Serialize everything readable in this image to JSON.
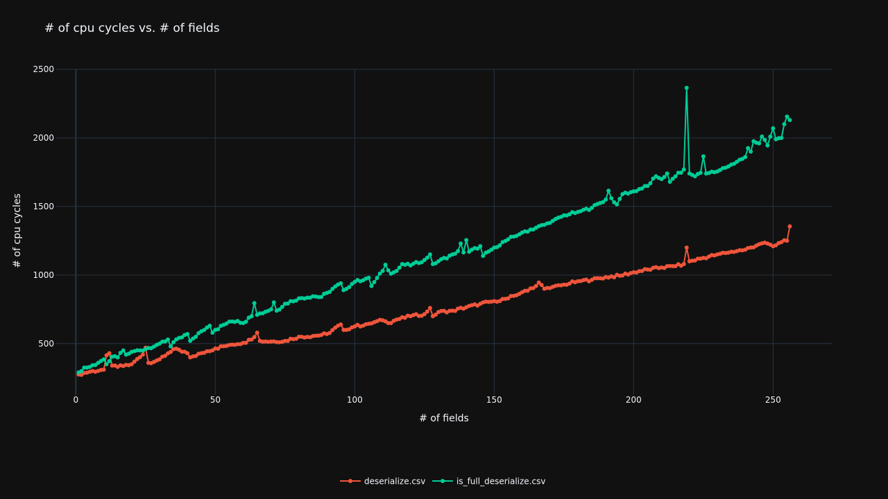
{
  "chart_data": {
    "type": "line",
    "title": "# of cpu cycles vs. # of fields",
    "xlabel": "# of fields",
    "ylabel": "# of cpu cycles",
    "xlim": [
      -7.3,
      271.3
    ],
    "ylim": [
      125,
      2500
    ],
    "xticks": [
      0,
      50,
      100,
      150,
      200,
      250
    ],
    "yticks": [
      500,
      1000,
      1500,
      2000,
      2500
    ],
    "grid": true,
    "legend_position": "bottom-center",
    "colors": {
      "background": "#111111",
      "grid": "#283442",
      "text": "#f2f5fa",
      "deserialize": "#EF553B",
      "is_full_deserialize": "#00CC96"
    },
    "series": [
      {
        "name": "deserialize.csv",
        "color": "#EF553B",
        "anchors": [
          [
            1,
            275
          ],
          [
            5,
            295
          ],
          [
            10,
            310
          ],
          [
            11,
            415
          ],
          [
            12,
            430
          ],
          [
            13,
            340
          ],
          [
            15,
            330
          ],
          [
            20,
            350
          ],
          [
            24,
            420
          ],
          [
            25,
            470
          ],
          [
            26,
            360
          ],
          [
            30,
            385
          ],
          [
            35,
            460
          ],
          [
            40,
            430
          ],
          [
            41,
            400
          ],
          [
            45,
            430
          ],
          [
            50,
            465
          ],
          [
            55,
            490
          ],
          [
            60,
            505
          ],
          [
            63,
            530
          ],
          [
            65,
            580
          ],
          [
            66,
            520
          ],
          [
            70,
            515
          ],
          [
            75,
            520
          ],
          [
            80,
            550
          ],
          [
            85,
            555
          ],
          [
            90,
            570
          ],
          [
            95,
            640
          ],
          [
            96,
            600
          ],
          [
            100,
            625
          ],
          [
            105,
            645
          ],
          [
            110,
            670
          ],
          [
            112,
            650
          ],
          [
            115,
            675
          ],
          [
            120,
            700
          ],
          [
            125,
            715
          ],
          [
            127,
            760
          ],
          [
            128,
            700
          ],
          [
            130,
            730
          ],
          [
            135,
            740
          ],
          [
            140,
            765
          ],
          [
            145,
            790
          ],
          [
            150,
            810
          ],
          [
            155,
            830
          ],
          [
            160,
            875
          ],
          [
            165,
            920
          ],
          [
            166,
            945
          ],
          [
            168,
            900
          ],
          [
            170,
            905
          ],
          [
            175,
            930
          ],
          [
            180,
            955
          ],
          [
            185,
            965
          ],
          [
            190,
            985
          ],
          [
            195,
            995
          ],
          [
            200,
            1020
          ],
          [
            205,
            1040
          ],
          [
            210,
            1055
          ],
          [
            215,
            1065
          ],
          [
            218,
            1080
          ],
          [
            219,
            1200
          ],
          [
            220,
            1100
          ],
          [
            225,
            1125
          ],
          [
            230,
            1150
          ],
          [
            235,
            1170
          ],
          [
            240,
            1185
          ],
          [
            245,
            1225
          ],
          [
            248,
            1230
          ],
          [
            250,
            1210
          ],
          [
            253,
            1240
          ],
          [
            255,
            1250
          ],
          [
            256,
            1355
          ]
        ]
      },
      {
        "name": "is_full_deserialize.csv",
        "color": "#00CC96",
        "anchors": [
          [
            1,
            290
          ],
          [
            3,
            325
          ],
          [
            5,
            330
          ],
          [
            8,
            360
          ],
          [
            10,
            385
          ],
          [
            11,
            350
          ],
          [
            13,
            405
          ],
          [
            15,
            400
          ],
          [
            17,
            450
          ],
          [
            18,
            420
          ],
          [
            20,
            440
          ],
          [
            25,
            460
          ],
          [
            30,
            500
          ],
          [
            33,
            530
          ],
          [
            34,
            480
          ],
          [
            35,
            510
          ],
          [
            40,
            570
          ],
          [
            41,
            520
          ],
          [
            45,
            590
          ],
          [
            48,
            630
          ],
          [
            49,
            580
          ],
          [
            50,
            600
          ],
          [
            55,
            660
          ],
          [
            58,
            665
          ],
          [
            60,
            650
          ],
          [
            63,
            700
          ],
          [
            64,
            795
          ],
          [
            65,
            710
          ],
          [
            70,
            750
          ],
          [
            71,
            800
          ],
          [
            72,
            740
          ],
          [
            75,
            790
          ],
          [
            80,
            830
          ],
          [
            85,
            845
          ],
          [
            88,
            840
          ],
          [
            90,
            870
          ],
          [
            95,
            940
          ],
          [
            96,
            890
          ],
          [
            100,
            950
          ],
          [
            105,
            980
          ],
          [
            106,
            920
          ],
          [
            110,
            1030
          ],
          [
            111,
            1075
          ],
          [
            113,
            1010
          ],
          [
            115,
            1030
          ],
          [
            117,
            1080
          ],
          [
            120,
            1070
          ],
          [
            125,
            1110
          ],
          [
            127,
            1150
          ],
          [
            128,
            1080
          ],
          [
            130,
            1100
          ],
          [
            135,
            1150
          ],
          [
            137,
            1175
          ],
          [
            138,
            1230
          ],
          [
            139,
            1165
          ],
          [
            140,
            1255
          ],
          [
            141,
            1170
          ],
          [
            145,
            1210
          ],
          [
            146,
            1140
          ],
          [
            150,
            1200
          ],
          [
            155,
            1260
          ],
          [
            160,
            1310
          ],
          [
            165,
            1345
          ],
          [
            170,
            1380
          ],
          [
            175,
            1435
          ],
          [
            180,
            1460
          ],
          [
            185,
            1490
          ],
          [
            190,
            1550
          ],
          [
            191,
            1615
          ],
          [
            192,
            1560
          ],
          [
            194,
            1515
          ],
          [
            196,
            1590
          ],
          [
            200,
            1610
          ],
          [
            205,
            1650
          ],
          [
            208,
            1720
          ],
          [
            210,
            1700
          ],
          [
            212,
            1740
          ],
          [
            213,
            1680
          ],
          [
            215,
            1720
          ],
          [
            218,
            1770
          ],
          [
            219,
            2365
          ],
          [
            220,
            1740
          ],
          [
            222,
            1720
          ],
          [
            224,
            1745
          ],
          [
            225,
            1865
          ],
          [
            226,
            1740
          ],
          [
            230,
            1755
          ],
          [
            235,
            1805
          ],
          [
            240,
            1860
          ],
          [
            241,
            1925
          ],
          [
            242,
            1900
          ],
          [
            243,
            1975
          ],
          [
            245,
            1960
          ],
          [
            246,
            2010
          ],
          [
            248,
            1945
          ],
          [
            250,
            2070
          ],
          [
            251,
            1990
          ],
          [
            253,
            2000
          ],
          [
            254,
            2100
          ],
          [
            255,
            2155
          ],
          [
            256,
            2130
          ]
        ]
      }
    ]
  }
}
